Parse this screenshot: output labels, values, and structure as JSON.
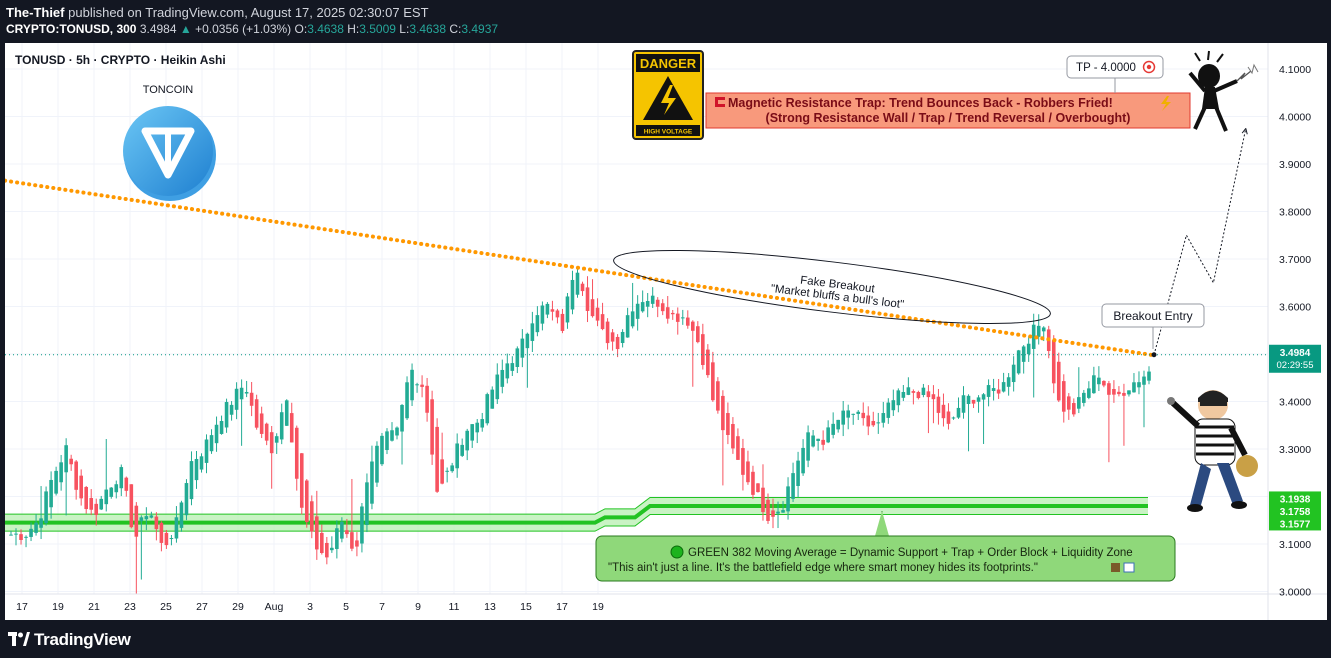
{
  "header": {
    "author": "The-Thief",
    "published_text": "published on TradingView.com, August 17, 2025 02:30:07 EST",
    "symbol_line": "CRYPTO:TONUSD, 300",
    "last": "3.4984",
    "change_arrow": "▲",
    "change": "+0.0356 (+1.03%)",
    "o_label": "O:",
    "o_value": "3.4638",
    "h_label": "H:",
    "h_value": "3.5009",
    "l_label": "L:",
    "l_value": "3.4638",
    "c_label": "C:",
    "c_value": "3.4937"
  },
  "chart_data": {
    "type": "candlestick",
    "title": "TONUSD · 5h · CRYPTO · Heikin Ashi",
    "subtitle_logo_text": "TONCOIN",
    "ylim": [
      2.98,
      4.145
    ],
    "yticks": [
      "4.1000",
      "4.0000",
      "3.9000",
      "3.8000",
      "3.7000",
      "3.6000",
      "3.5000",
      "3.4000",
      "3.3000",
      "3.2000",
      "3.1000",
      "3.0000"
    ],
    "xticks": [
      "17",
      "19",
      "21",
      "23",
      "25",
      "27",
      "29",
      "Aug",
      "3",
      "5",
      "7",
      "9",
      "11",
      "13",
      "15",
      "17",
      "19"
    ],
    "last_price": "3.4984",
    "countdown": "02:29:55",
    "ma_labels": [
      "3.1938",
      "3.1758",
      "3.1577"
    ],
    "colors": {
      "up": "#22ab94",
      "down": "#f7525f",
      "ma": "#22c322",
      "trend": "#ff9800",
      "price": "#089981"
    },
    "trendline": {
      "from": [
        0,
        3.865
      ],
      "to": [
        228,
        3.497
      ]
    },
    "ma_band": {
      "start": 3.145,
      "step1": 3.156,
      "step2": 3.18
    },
    "projection_path": [
      [
        3.4984,
        0
      ],
      [
        3.75,
        6
      ],
      [
        3.65,
        11
      ],
      [
        3.975,
        17
      ]
    ],
    "candles_anchor": [
      3.12,
      3.12,
      3.15,
      3.24,
      3.3,
      3.2,
      3.16,
      3.22,
      3.25,
      3.11,
      3.18,
      3.09,
      3.14,
      3.27,
      3.3,
      3.36,
      3.4,
      3.44,
      3.33,
      3.3,
      3.42,
      3.18,
      3.1,
      3.07,
      3.15,
      3.08,
      3.27,
      3.32,
      3.33,
      3.47,
      3.43,
      3.2,
      3.27,
      3.34,
      3.36,
      3.43,
      3.48,
      3.51,
      3.59,
      3.6,
      3.55,
      3.7,
      3.59,
      3.54,
      3.52,
      3.6,
      3.62,
      3.61,
      3.58,
      3.58,
      3.52,
      3.4,
      3.32,
      3.26,
      3.21,
      3.16,
      3.18,
      3.27,
      3.33,
      3.32,
      3.36,
      3.38,
      3.35,
      3.35,
      3.4,
      3.42,
      3.42,
      3.4,
      3.34,
      3.4,
      3.41,
      3.42,
      3.43,
      3.5,
      3.54,
      3.57,
      3.4,
      3.37,
      3.42,
      3.46,
      3.4,
      3.43,
      3.45,
      3.47
    ],
    "annotations": {
      "danger_title": "DANGER",
      "danger_sub": "HIGH VOLTAGE",
      "warn_line1": "Magnetic Resistance Trap: Trend Bounces Back - Robbers Fried!",
      "warn_line2": "(Strong Resistance Wall / Trap / Trend Reversal / Overbought)",
      "tp_label": "TP - 4.0000",
      "fake_title": "Fake Breakout",
      "fake_sub": "\"Market bluffs a bull's loot\"",
      "breakout_label": "Breakout Entry",
      "green_line1": "GREEN 382 Moving Average = Dynamic Support + Trap + Order Block + Liquidity Zone",
      "green_line2": "\"This ain't just a line. It's the battlefield edge where smart money hides its footprints.\""
    }
  },
  "footer": {
    "brand": "TradingView"
  }
}
